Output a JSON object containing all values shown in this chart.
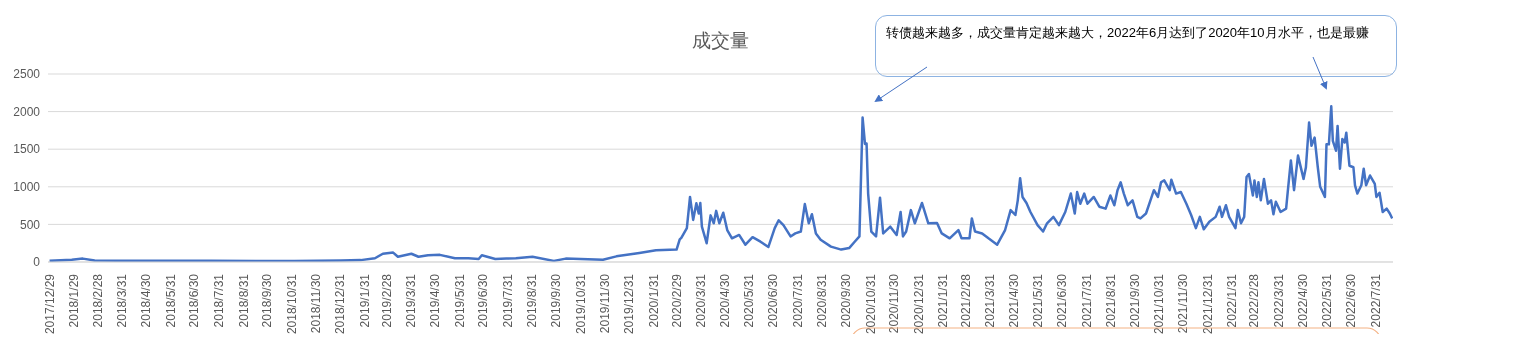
{
  "chart_data": {
    "type": "line",
    "title": "成交量",
    "annotations": [
      "转债越来越多，成交量肯定越来越大，2022年6月达到了2020年10月水平，也是最赚"
    ],
    "x": [
      "2017-12-29",
      "2018-01-26",
      "2018-02-09",
      "2018-02-24",
      "2018-04-07",
      "2018-07-21",
      "2018-11-03",
      "2019-01-01",
      "2019-01-26",
      "2019-02-13",
      "2019-02-23",
      "2019-03-08",
      "2019-03-14",
      "2019-03-31",
      "2019-04-09",
      "2019-04-21",
      "2019-05-06",
      "2019-05-25",
      "2019-06-11",
      "2019-06-24",
      "2019-06-28",
      "2019-07-15",
      "2019-07-29",
      "2019-08-10",
      "2019-08-31",
      "2019-09-27",
      "2019-10-12",
      "2019-11-28",
      "2019-12-15",
      "2020-01-13",
      "2020-02-03",
      "2020-02-29",
      "2020-03-04",
      "2020-03-06",
      "2020-03-13",
      "2020-03-17",
      "2020-03-21",
      "2020-03-25",
      "2020-03-28",
      "2020-03-30",
      "2020-04-01",
      "2020-04-07",
      "2020-04-12",
      "2020-04-16",
      "2020-04-19",
      "2020-04-23",
      "2020-04-28",
      "2020-05-03",
      "2020-05-09",
      "2020-05-18",
      "2020-05-26",
      "2020-06-04",
      "2020-06-14",
      "2020-06-24",
      "2020-07-02",
      "2020-07-07",
      "2020-07-13",
      "2020-07-22",
      "2020-07-28",
      "2020-08-04",
      "2020-08-09",
      "2020-08-14",
      "2020-08-18",
      "2020-08-23",
      "2020-08-29",
      "2020-09-11",
      "2020-09-24",
      "2020-10-04",
      "2020-10-11",
      "2020-10-17",
      "2020-10-21",
      "2020-10-24",
      "2020-10-26",
      "2020-10-28",
      "2020-11-01",
      "2020-11-07",
      "2020-11-12",
      "2020-11-16",
      "2020-11-25",
      "2020-12-03",
      "2020-12-08",
      "2020-12-11",
      "2020-12-15",
      "2020-12-21",
      "2020-12-26",
      "2021-01-04",
      "2021-01-12",
      "2021-01-23",
      "2021-01-29",
      "2021-02-08",
      "2021-02-19",
      "2021-02-23",
      "2021-03-05",
      "2021-03-08",
      "2021-03-12",
      "2021-03-21",
      "2021-03-29",
      "2021-04-09",
      "2021-04-19",
      "2021-04-26",
      "2021-05-02",
      "2021-05-05",
      "2021-05-08",
      "2021-05-11",
      "2021-05-16",
      "2021-05-21",
      "2021-05-30",
      "2021-06-06",
      "2021-06-11",
      "2021-06-19",
      "2021-06-26",
      "2021-07-04",
      "2021-07-11",
      "2021-07-16",
      "2021-07-19",
      "2021-07-23",
      "2021-07-28",
      "2021-08-01",
      "2021-08-09",
      "2021-08-16",
      "2021-08-24",
      "2021-08-30",
      "2021-09-04",
      "2021-09-08",
      "2021-09-12",
      "2021-09-16",
      "2021-09-21",
      "2021-09-27",
      "2021-10-03",
      "2021-10-07",
      "2021-10-14",
      "2021-10-24",
      "2021-10-29",
      "2021-11-02",
      "2021-11-06",
      "2021-11-13",
      "2021-11-15",
      "2021-11-21",
      "2021-11-27",
      "2021-12-04",
      "2021-12-10",
      "2021-12-16",
      "2021-12-21",
      "2021-12-26",
      "2022-01-02",
      "2022-01-10",
      "2022-01-15",
      "2022-01-18",
      "2022-01-23",
      "2022-01-27",
      "2022-02-04",
      "2022-02-07",
      "2022-02-11",
      "2022-02-15",
      "2022-02-18",
      "2022-02-21",
      "2022-02-26",
      "2022-02-28",
      "2022-03-03",
      "2022-03-05",
      "2022-03-08",
      "2022-03-12",
      "2022-03-17",
      "2022-03-21",
      "2022-03-24",
      "2022-03-27",
      "2022-04-02",
      "2022-04-09",
      "2022-04-11",
      "2022-04-15",
      "2022-04-19",
      "2022-04-24",
      "2022-05-01",
      "2022-05-04",
      "2022-05-08",
      "2022-05-11",
      "2022-05-15",
      "2022-05-19",
      "2022-05-22",
      "2022-05-28",
      "2022-05-30",
      "2022-06-02",
      "2022-06-05",
      "2022-06-07",
      "2022-06-11",
      "2022-06-13",
      "2022-06-16",
      "2022-06-19",
      "2022-06-22",
      "2022-06-24",
      "2022-06-28",
      "2022-07-03",
      "2022-07-05",
      "2022-07-08",
      "2022-07-13",
      "2022-07-16",
      "2022-07-19",
      "2022-07-24",
      "2022-07-30",
      "2022-08-01",
      "2022-08-05",
      "2022-08-09",
      "2022-08-14",
      "2022-08-18",
      "2022-08-21"
    ],
    "series": [
      {
        "color": "#4472c4",
        "values": [
          15,
          30,
          45,
          20,
          15,
          15,
          12,
          20,
          25,
          50,
          110,
          125,
          70,
          110,
          70,
          90,
          95,
          50,
          50,
          40,
          90,
          40,
          45,
          50,
          70,
          15,
          45,
          30,
          75,
          120,
          155,
          165,
          300,
          320,
          450,
          865,
          560,
          780,
          645,
          785,
          470,
          250,
          620,
          515,
          680,
          515,
          655,
          425,
          315,
          360,
          230,
          330,
          270,
          200,
          450,
          555,
          490,
          340,
          380,
          405,
          770,
          515,
          635,
          380,
          295,
          205,
          165,
          185,
          270,
          340,
          1920,
          1570,
          1575,
          910,
          405,
          340,
          855,
          380,
          470,
          360,
          665,
          340,
          405,
          690,
          515,
          785,
          515,
          520,
          380,
          315,
          425,
          315,
          315,
          580,
          405,
          380,
          315,
          230,
          425,
          690,
          625,
          820,
          1115,
          865,
          785,
          665,
          490,
          405,
          515,
          600,
          490,
          665,
          910,
          645,
          930,
          775,
          910,
          775,
          865,
          735,
          710,
          885,
          755,
          955,
          1060,
          910,
          755,
          820,
          600,
          580,
          645,
          955,
          865,
          1060,
          1085,
          955,
          1095,
          910,
          930,
          775,
          625,
          450,
          600,
          435,
          535,
          600,
          735,
          600,
          755,
          600,
          450,
          690,
          515,
          600,
          1130,
          1170,
          885,
          1085,
          865,
          1060,
          820,
          1105,
          775,
          820,
          635,
          800,
          665,
          710,
          930,
          1350,
          955,
          1415,
          1105,
          1260,
          1855,
          1545,
          1655,
          1260,
          1000,
          865,
          1565,
          1565,
          2070,
          1610,
          1480,
          1810,
          1240,
          1635,
          1590,
          1720,
          1280,
          1260,
          1020,
          910,
          1020,
          1240,
          1020,
          1150,
          1040,
          865,
          920,
          665,
          710,
          645,
          580
        ]
      }
    ],
    "xlim": [
      "2017-12-27",
      "2022-08-22"
    ],
    "xticks": [
      {
        "value": "2017-12-29",
        "label": "2017/12/29"
      },
      {
        "value": "2018-01-29",
        "label": "2018/1/29"
      },
      {
        "value": "2018-02-28",
        "label": "2018/2/28"
      },
      {
        "value": "2018-03-31",
        "label": "2018/3/31"
      },
      {
        "value": "2018-04-30",
        "label": "2018/4/30"
      },
      {
        "value": "2018-05-31",
        "label": "2018/5/31"
      },
      {
        "value": "2018-06-30",
        "label": "2018/6/30"
      },
      {
        "value": "2018-07-31",
        "label": "2018/7/31"
      },
      {
        "value": "2018-08-31",
        "label": "2018/8/31"
      },
      {
        "value": "2018-09-30",
        "label": "2018/9/30"
      },
      {
        "value": "2018-10-31",
        "label": "2018/10/31"
      },
      {
        "value": "2018-11-30",
        "label": "2018/11/30"
      },
      {
        "value": "2018-12-31",
        "label": "2018/12/31"
      },
      {
        "value": "2019-01-31",
        "label": "2019/1/31"
      },
      {
        "value": "2019-02-28",
        "label": "2019/2/28"
      },
      {
        "value": "2019-03-31",
        "label": "2019/3/31"
      },
      {
        "value": "2019-04-30",
        "label": "2019/4/30"
      },
      {
        "value": "2019-05-31",
        "label": "2019/5/31"
      },
      {
        "value": "2019-06-30",
        "label": "2019/6/30"
      },
      {
        "value": "2019-07-31",
        "label": "2019/7/31"
      },
      {
        "value": "2019-08-31",
        "label": "2019/8/31"
      },
      {
        "value": "2019-09-30",
        "label": "2019/9/30"
      },
      {
        "value": "2019-10-31",
        "label": "2019/10/31"
      },
      {
        "value": "2019-11-30",
        "label": "2019/11/30"
      },
      {
        "value": "2019-12-31",
        "label": "2019/12/31"
      },
      {
        "value": "2020-01-31",
        "label": "2020/1/31"
      },
      {
        "value": "2020-02-29",
        "label": "2020/2/29"
      },
      {
        "value": "2020-03-31",
        "label": "2020/3/31"
      },
      {
        "value": "2020-04-30",
        "label": "2020/4/30"
      },
      {
        "value": "2020-05-31",
        "label": "2020/5/31"
      },
      {
        "value": "2020-06-30",
        "label": "2020/6/30"
      },
      {
        "value": "2020-07-31",
        "label": "2020/7/31"
      },
      {
        "value": "2020-08-31",
        "label": "2020/8/31"
      },
      {
        "value": "2020-09-30",
        "label": "2020/9/30"
      },
      {
        "value": "2020-10-31",
        "label": "2020/10/31"
      },
      {
        "value": "2020-11-30",
        "label": "2020/11/30"
      },
      {
        "value": "2020-12-31",
        "label": "2020/12/31"
      },
      {
        "value": "2021-01-31",
        "label": "2021/1/31"
      },
      {
        "value": "2021-02-28",
        "label": "2021/2/28"
      },
      {
        "value": "2021-03-31",
        "label": "2021/3/31"
      },
      {
        "value": "2021-04-30",
        "label": "2021/4/30"
      },
      {
        "value": "2021-05-31",
        "label": "2021/5/31"
      },
      {
        "value": "2021-06-30",
        "label": "2021/6/30"
      },
      {
        "value": "2021-07-31",
        "label": "2021/7/31"
      },
      {
        "value": "2021-08-31",
        "label": "2021/8/31"
      },
      {
        "value": "2021-09-30",
        "label": "2021/9/30"
      },
      {
        "value": "2021-10-31",
        "label": "2021/10/31"
      },
      {
        "value": "2021-11-30",
        "label": "2021/11/30"
      },
      {
        "value": "2021-12-31",
        "label": "2021/12/31"
      },
      {
        "value": "2022-01-31",
        "label": "2022/1/31"
      },
      {
        "value": "2022-02-28",
        "label": "2022/2/28"
      },
      {
        "value": "2022-03-31",
        "label": "2022/3/31"
      },
      {
        "value": "2022-04-30",
        "label": "2022/4/30"
      },
      {
        "value": "2022-05-31",
        "label": "2022/5/31"
      },
      {
        "value": "2022-06-30",
        "label": "2022/6/30"
      },
      {
        "value": "2022-07-31",
        "label": "2022/7/31"
      }
    ],
    "ylim": [
      0,
      2500
    ],
    "yticks": [
      0,
      500,
      1000,
      1500,
      2000,
      2500
    ],
    "grid": "y",
    "marker": "none",
    "line_style": "solid"
  }
}
